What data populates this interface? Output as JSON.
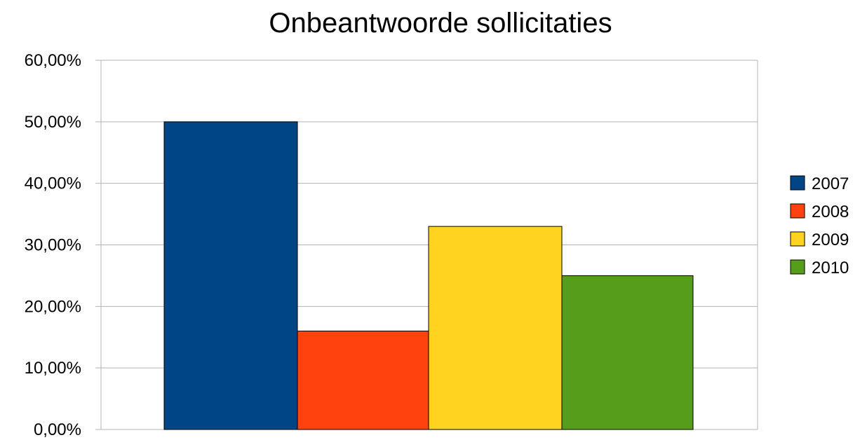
{
  "chart_data": {
    "type": "bar",
    "title": "Onbeantwoorde sollicitaties",
    "xlabel": "",
    "ylabel": "",
    "ylim": [
      0,
      0.6
    ],
    "yticks": [
      0,
      0.1,
      0.2,
      0.3,
      0.4,
      0.5,
      0.6
    ],
    "ytick_labels": [
      "0,00%",
      "10,00%",
      "20,00%",
      "30,00%",
      "40,00%",
      "50,00%",
      "60,00%"
    ],
    "grid": true,
    "legend": "right",
    "categories": [
      ""
    ],
    "series": [
      {
        "name": "2007",
        "values": [
          0.5
        ],
        "color": "#004586"
      },
      {
        "name": "2008",
        "values": [
          0.16
        ],
        "color": "#ff420e"
      },
      {
        "name": "2009",
        "values": [
          0.33
        ],
        "color": "#ffd320"
      },
      {
        "name": "2010",
        "values": [
          0.25
        ],
        "color": "#579d1c"
      }
    ]
  }
}
